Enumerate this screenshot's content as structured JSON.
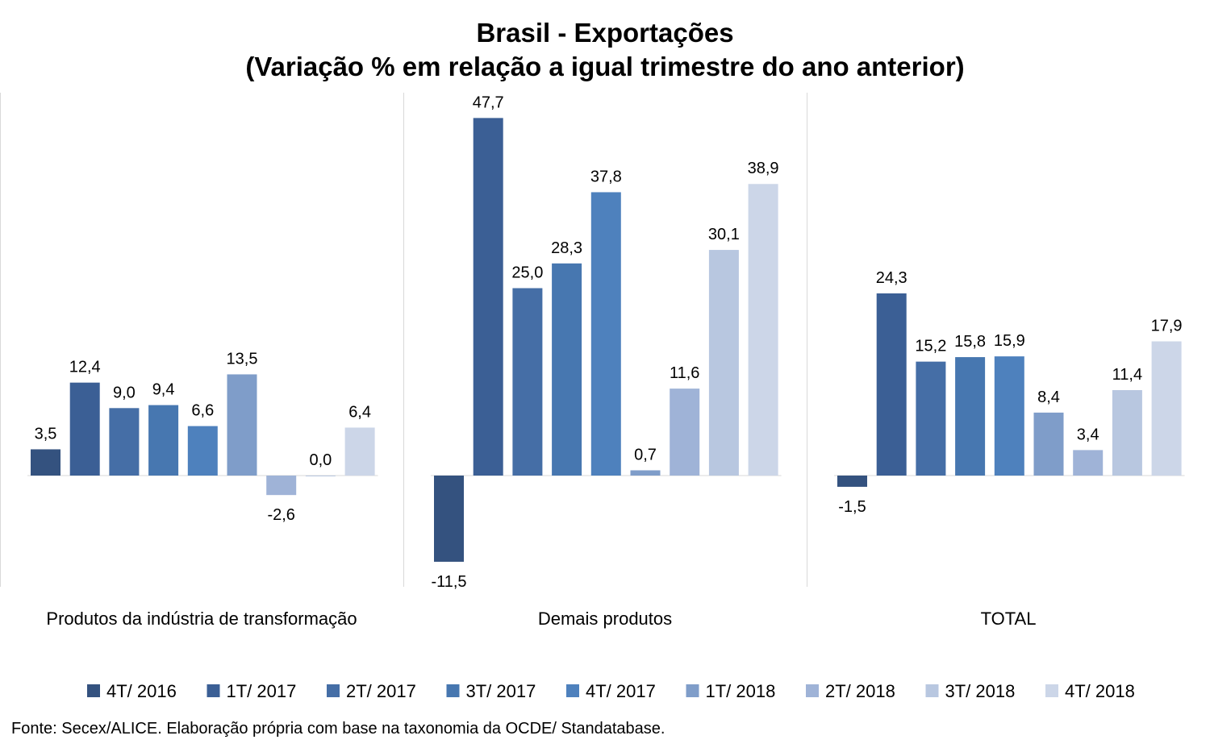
{
  "chart_data": {
    "type": "bar",
    "title": "Brasil - Exportações",
    "subtitle": "(Variação % em relação a igual trimestre do ano anterior)",
    "categories": [
      "Produtos da indústria de transformação",
      "Demais produtos",
      "TOTAL"
    ],
    "series": [
      {
        "name": "4T/ 2016",
        "color": "#34527f",
        "values": [
          3.5,
          -11.5,
          -1.5
        ],
        "labels": [
          "3,5",
          "-11,5",
          "-1,5"
        ]
      },
      {
        "name": "1T/ 2017",
        "color": "#3b5f95",
        "values": [
          12.4,
          47.7,
          24.3
        ],
        "labels": [
          "12,4",
          "47,7",
          "24,3"
        ]
      },
      {
        "name": "2T/ 2017",
        "color": "#456ea6",
        "values": [
          9.0,
          25.0,
          15.2
        ],
        "labels": [
          "9,0",
          "25,0",
          "15,2"
        ]
      },
      {
        "name": "3T/ 2017",
        "color": "#4777b0",
        "values": [
          9.4,
          28.3,
          15.8
        ],
        "labels": [
          "9,4",
          "28,3",
          "15,8"
        ]
      },
      {
        "name": "4T/ 2017",
        "color": "#4e81bd",
        "values": [
          6.6,
          37.8,
          15.9
        ],
        "labels": [
          "6,6",
          "37,8",
          "15,9"
        ]
      },
      {
        "name": "1T/ 2018",
        "color": "#7f9dc9",
        "values": [
          13.5,
          0.7,
          8.4
        ],
        "labels": [
          "13,5",
          "0,7",
          "8,4"
        ]
      },
      {
        "name": "2T/ 2018",
        "color": "#9fb3d7",
        "values": [
          -2.6,
          11.6,
          3.4
        ],
        "labels": [
          "-2,6",
          "11,6",
          "3,4"
        ]
      },
      {
        "name": "3T/ 2018",
        "color": "#b8c7e0",
        "values": [
          0.0,
          30.1,
          11.4
        ],
        "labels": [
          "0,0",
          "30,1",
          "11,4"
        ]
      },
      {
        "name": "4T/ 2018",
        "color": "#ccd6e8",
        "values": [
          6.4,
          38.9,
          17.9
        ],
        "labels": [
          "6,4",
          "38,9",
          "17,9"
        ]
      }
    ],
    "ylim": [
      -13,
      51
    ],
    "grid": false,
    "legend_position": "bottom"
  },
  "source": "Fonte: Secex/ALICE. Elaboração própria com base na taxonomia da OCDE/ Standatabase."
}
